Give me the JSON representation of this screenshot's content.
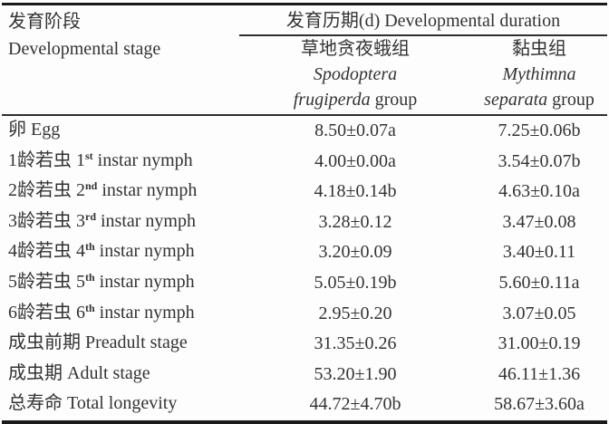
{
  "page": {
    "background": "#fdfdfd",
    "text_color": "#333333",
    "thick_rule_color": "#1a1a1a",
    "thin_rule_color": "#2e2e2e"
  },
  "table": {
    "header": {
      "stage_zh": "发育阶段",
      "stage_en": "Developmental stage",
      "spanner": "发育历期(d) Developmental duration",
      "groups": [
        {
          "zh": "草地贪夜蛾组",
          "genus": "Spodoptera",
          "species": "frugiperda",
          "suffix": "group"
        },
        {
          "zh": "黏虫组",
          "genus": "Mythimna",
          "species": "separata",
          "suffix": "group"
        }
      ]
    },
    "rows": [
      {
        "zh": "卵",
        "en_pre": "Egg",
        "en_sup": "",
        "en_post": "",
        "v1": "8.50±0.07a",
        "v2": "7.25±0.06b"
      },
      {
        "zh": "1龄若虫",
        "en_pre": "1",
        "en_sup": "st",
        "en_post": " instar nymph",
        "v1": "4.00±0.00a",
        "v2": "3.54±0.07b"
      },
      {
        "zh": "2龄若虫",
        "en_pre": "2",
        "en_sup": "nd",
        "en_post": " instar nymph",
        "v1": "4.18±0.14b",
        "v2": "4.63±0.10a"
      },
      {
        "zh": "3龄若虫",
        "en_pre": "3",
        "en_sup": "rd",
        "en_post": " instar nymph",
        "v1": "3.28±0.12",
        "v2": "3.47±0.08"
      },
      {
        "zh": "4龄若虫",
        "en_pre": "4",
        "en_sup": "th",
        "en_post": " instar nymph",
        "v1": "3.20±0.09",
        "v2": "3.40±0.11"
      },
      {
        "zh": "5龄若虫",
        "en_pre": "5",
        "en_sup": "th",
        "en_post": " instar nymph",
        "v1": "5.05±0.19b",
        "v2": "5.60±0.11a"
      },
      {
        "zh": "6龄若虫",
        "en_pre": "6",
        "en_sup": "th",
        "en_post": " instar nymph",
        "v1": "2.95±0.20",
        "v2": "3.07±0.05"
      },
      {
        "zh": "成虫前期",
        "en_pre": "Preadult stage",
        "en_sup": "",
        "en_post": "",
        "v1": "31.35±0.26",
        "v2": "31.00±0.19"
      },
      {
        "zh": "成虫期",
        "en_pre": "Adult stage",
        "en_sup": "",
        "en_post": "",
        "v1": "53.20±1.90",
        "v2": "46.11±1.36"
      },
      {
        "zh": "总寿命",
        "en_pre": "Total longevity",
        "en_sup": "",
        "en_post": "",
        "v1": "44.72±4.70b",
        "v2": "58.67±3.60a"
      }
    ]
  }
}
